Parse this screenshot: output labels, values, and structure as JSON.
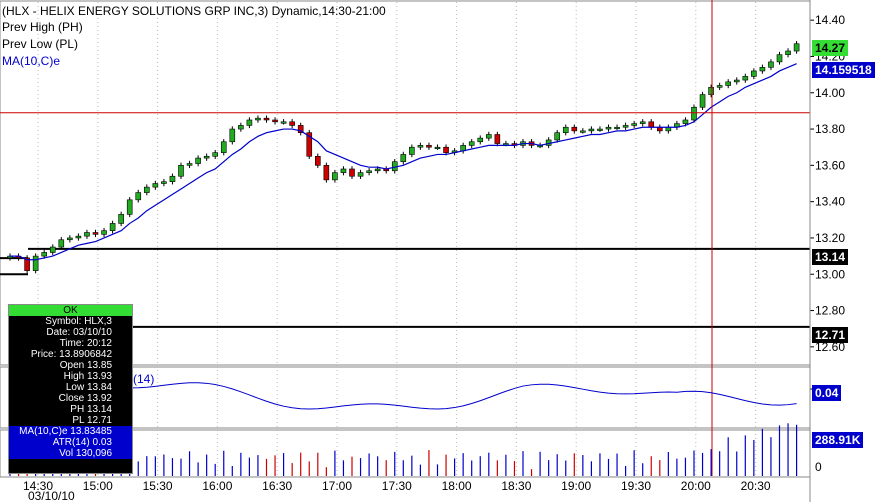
{
  "header": {
    "title": "(HLX - HELIX ENERGY SOLUTIONS GRP INC,3) Dynamic,14:30-21:00",
    "legend_ph": "Prev High (PH)",
    "legend_pl": "Prev Low (PL)",
    "legend_ma": "MA(10,C)e"
  },
  "right_tags": {
    "last_price": "14.27",
    "ma_value": "14.159518",
    "ph_value": "13.14",
    "pl_value": "12.71",
    "indicator_value": "0.04",
    "volume_value": "288.91K"
  },
  "indicator_label": "(14)",
  "date_label": "03/10/10",
  "info_box": {
    "ok": "OK",
    "rows": [
      "Symbol: HLX,3",
      "Date: 03/10/10",
      "Time: 20:12",
      "Price: 13.8906842",
      "Open 13.85",
      "High 13.93",
      "Low 13.84",
      "Close 13.92",
      "PH 13.14",
      "PL 12.71"
    ],
    "blue_rows": [
      "MA(10,C)e 13.83485",
      "ATR(14) 0.03",
      "Vol 130,096"
    ]
  },
  "colors": {
    "up": "#22aa22",
    "down": "#cc0000",
    "ma_line": "#0000cc",
    "crosshair": "#cc0000",
    "last_tag": "#33dd33",
    "ma_tag": "#0000cc",
    "level_tag": "#000000"
  },
  "chart_data": {
    "type": "candlestick",
    "ylim": [
      12.5,
      14.5
    ],
    "yticks": [
      "14.40",
      "14.20",
      "14.00",
      "13.80",
      "13.60",
      "13.40",
      "13.20",
      "13.00",
      "12.80",
      "12.60"
    ],
    "xticks": [
      "14:30",
      "15:00",
      "15:30",
      "16:00",
      "16:30",
      "17:00",
      "17:30",
      "18:00",
      "18:30",
      "19:00",
      "19:30",
      "20:00",
      "20:30"
    ],
    "prev_high": 13.14,
    "prev_low": 12.71,
    "crosshair_price": 13.89,
    "crosshair_time": "20:12",
    "close": [
      13.1,
      13.09,
      13.02,
      13.1,
      13.12,
      13.15,
      13.19,
      13.2,
      13.21,
      13.23,
      13.22,
      13.24,
      13.28,
      13.33,
      13.41,
      13.45,
      13.48,
      13.5,
      13.51,
      13.54,
      13.6,
      13.61,
      13.64,
      13.65,
      13.67,
      13.73,
      13.8,
      13.82,
      13.85,
      13.86,
      13.85,
      13.84,
      13.84,
      13.82,
      13.78,
      13.65,
      13.6,
      13.52,
      13.56,
      13.58,
      13.54,
      13.56,
      13.57,
      13.58,
      13.57,
      13.62,
      13.66,
      13.7,
      13.71,
      13.7,
      13.7,
      13.67,
      13.68,
      13.71,
      13.73,
      13.75,
      13.77,
      13.72,
      13.72,
      13.71,
      13.73,
      13.71,
      13.71,
      13.74,
      13.78,
      13.81,
      13.79,
      13.79,
      13.8,
      13.8,
      13.81,
      13.81,
      13.82,
      13.83,
      13.84,
      13.81,
      13.79,
      13.81,
      13.83,
      13.85,
      13.92,
      13.99,
      14.03,
      14.04,
      14.06,
      14.07,
      14.09,
      14.12,
      14.14,
      14.17,
      14.21,
      14.23,
      14.27
    ],
    "ma": [
      13.1,
      13.1,
      13.08,
      13.08,
      13.09,
      13.1,
      13.12,
      13.14,
      13.16,
      13.17,
      13.18,
      13.2,
      13.22,
      13.24,
      13.28,
      13.31,
      13.35,
      13.38,
      13.41,
      13.44,
      13.47,
      13.5,
      13.53,
      13.56,
      13.58,
      13.62,
      13.66,
      13.69,
      13.73,
      13.76,
      13.78,
      13.79,
      13.8,
      13.8,
      13.79,
      13.76,
      13.73,
      13.68,
      13.66,
      13.64,
      13.62,
      13.6,
      13.59,
      13.59,
      13.58,
      13.59,
      13.6,
      13.62,
      13.64,
      13.65,
      13.66,
      13.66,
      13.67,
      13.68,
      13.69,
      13.7,
      13.71,
      13.71,
      13.71,
      13.71,
      13.72,
      13.72,
      13.71,
      13.72,
      13.73,
      13.74,
      13.75,
      13.76,
      13.77,
      13.77,
      13.78,
      13.79,
      13.79,
      13.8,
      13.81,
      13.81,
      13.81,
      13.81,
      13.81,
      13.82,
      13.84,
      13.88,
      13.92,
      13.95,
      13.98,
      14.0,
      14.03,
      14.05,
      14.07,
      14.09,
      14.12,
      14.14,
      14.16
    ]
  }
}
